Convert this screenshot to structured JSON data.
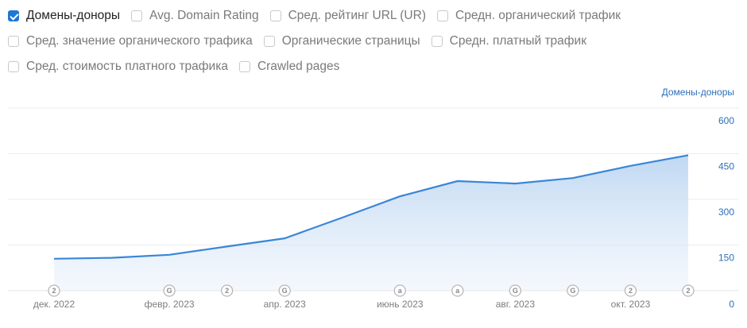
{
  "filters": {
    "row1": [
      {
        "label": "Домены-доноры",
        "checked": true
      },
      {
        "label": "Avg. Domain Rating",
        "checked": false
      },
      {
        "label": "Сред. рейтинг URL (UR)",
        "checked": false
      },
      {
        "label": "Средн. органический трафик",
        "checked": false
      }
    ],
    "row2": [
      {
        "label": "Сред. значение органического трафика",
        "checked": false
      },
      {
        "label": "Органические страницы",
        "checked": false
      },
      {
        "label": "Средн. платный трафик",
        "checked": false
      }
    ],
    "row3": [
      {
        "label": "Сред. стоимость платного трафика",
        "checked": false
      },
      {
        "label": "Crawled pages",
        "checked": false
      }
    ]
  },
  "chart_data": {
    "type": "area",
    "ylabel": "Домены-доноры",
    "ylim": [
      0,
      600
    ],
    "yticks": [
      0,
      150,
      300,
      450,
      600
    ],
    "y_axis_side": "right",
    "grid": true,
    "x": [
      "2022-12",
      "2023-01",
      "2023-02",
      "2023-03",
      "2023-04",
      "2023-05",
      "2023-06",
      "2023-07",
      "2023-08",
      "2023-09",
      "2023-10",
      "2023-11"
    ],
    "x_tick_labels": [
      "дек. 2022",
      "февр. 2023",
      "апр. 2023",
      "июнь 2023",
      "авг. 2023",
      "окт. 2023"
    ],
    "series": [
      {
        "values": [
          105,
          108,
          118,
          145,
          172,
          240,
          310,
          360,
          352,
          370,
          410,
          445
        ]
      }
    ],
    "line_color": "#3a86d6",
    "markers": [
      {
        "x": "2022-12",
        "symbol": "2"
      },
      {
        "x": "2023-02",
        "symbol": "G"
      },
      {
        "x": "2023-03",
        "symbol": "2"
      },
      {
        "x": "2023-04",
        "symbol": "G"
      },
      {
        "x": "2023-06",
        "symbol": "a"
      },
      {
        "x": "2023-07",
        "symbol": "a"
      },
      {
        "x": "2023-08",
        "symbol": "G"
      },
      {
        "x": "2023-09",
        "symbol": "G"
      },
      {
        "x": "2023-10",
        "symbol": "2"
      },
      {
        "x": "2023-11",
        "symbol": "2"
      }
    ]
  }
}
